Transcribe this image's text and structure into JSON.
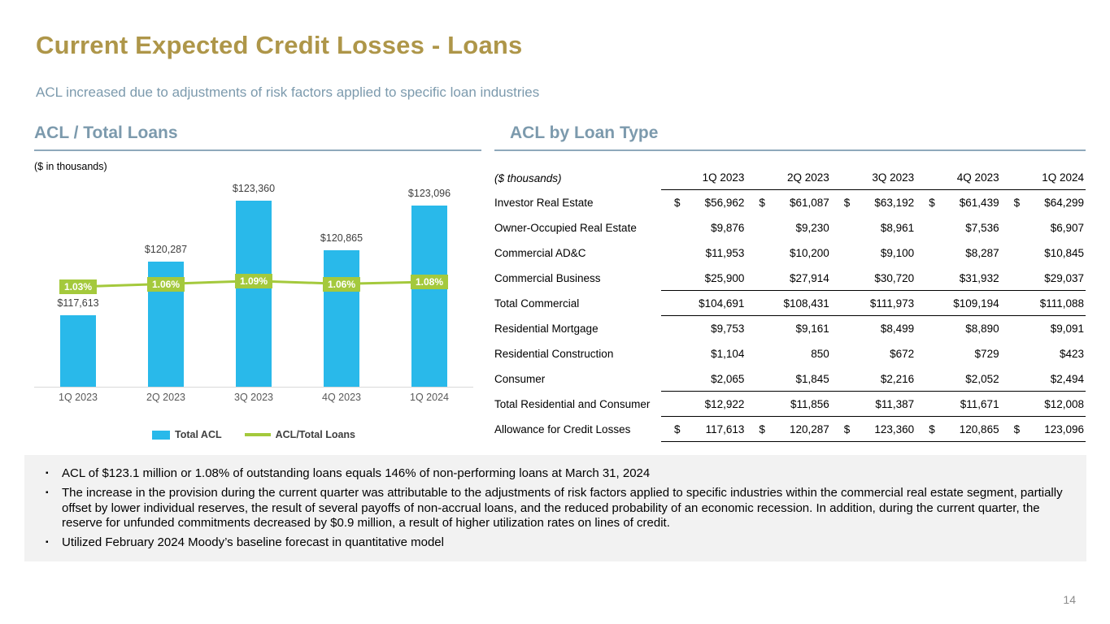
{
  "slide": {
    "title": "Current Expected Credit Losses - Loans",
    "subtitle": "ACL increased due to adjustments of risk factors applied to specific loan industries",
    "page_number": "14"
  },
  "colors": {
    "title_gold": "#AE9649",
    "heading_blue": "#7C9AAD",
    "bar_blue": "#29B9EA",
    "line_green": "#A4C93C",
    "notes_bg": "#F2F2F2"
  },
  "chart_section": {
    "heading": "ACL / Total Loans",
    "units_note": "($ in thousands)",
    "legend": [
      {
        "label": "Total ACL",
        "swatch": "bar"
      },
      {
        "label": "ACL/Total Loans",
        "swatch": "line"
      }
    ]
  },
  "chart_data": {
    "type": "bar+line",
    "title": "ACL / Total Loans",
    "categories": [
      "1Q 2023",
      "2Q 2023",
      "3Q 2023",
      "4Q 2023",
      "1Q 2024"
    ],
    "series": [
      {
        "name": "Total ACL",
        "type": "bar",
        "values": [
          117613,
          120287,
          123360,
          120865,
          123096
        ],
        "labels": [
          "$117,613",
          "$120,287",
          "$123,360",
          "$120,865",
          "$123,096"
        ]
      },
      {
        "name": "ACL/Total Loans",
        "type": "line",
        "values": [
          1.03,
          1.06,
          1.09,
          1.06,
          1.08
        ],
        "labels": [
          "1.03%",
          "1.06%",
          "1.09%",
          "1.06%",
          "1.08%"
        ]
      }
    ],
    "bar_axis": {
      "min": 114000,
      "max": 123800
    },
    "pct_axis": {
      "min": 0,
      "max": 2
    },
    "grid": "off",
    "legend_position": "bottom"
  },
  "table_section": {
    "heading": "ACL by Loan Type",
    "units_header": "($ thousands)",
    "columns": [
      "1Q 2023",
      "2Q 2023",
      "3Q 2023",
      "4Q 2023",
      "1Q 2024"
    ],
    "rows": [
      {
        "label": "Investor Real Estate",
        "dollar": true,
        "rule_below": false,
        "values": [
          "$56,962",
          "$61,087",
          "$63,192",
          "$61,439",
          "$64,299"
        ]
      },
      {
        "label": "Owner-Occupied Real Estate",
        "dollar": false,
        "rule_below": false,
        "values": [
          "$9,876",
          "$9,230",
          "$8,961",
          "$7,536",
          "$6,907"
        ]
      },
      {
        "label": "Commercial AD&C",
        "dollar": false,
        "rule_below": false,
        "values": [
          "$11,953",
          "$10,200",
          "$9,100",
          "$8,287",
          "$10,845"
        ]
      },
      {
        "label": "Commercial Business",
        "dollar": false,
        "rule_below": true,
        "values": [
          "$25,900",
          "$27,914",
          "$30,720",
          "$31,932",
          "$29,037"
        ]
      },
      {
        "label": "Total Commercial",
        "dollar": false,
        "rule_below": true,
        "values": [
          "$104,691",
          "$108,431",
          "$111,973",
          "$109,194",
          "$111,088"
        ]
      },
      {
        "label": "Residential Mortgage",
        "dollar": false,
        "rule_below": false,
        "values": [
          "$9,753",
          "$9,161",
          "$8,499",
          "$8,890",
          "$9,091"
        ]
      },
      {
        "label": "Residential Construction",
        "dollar": false,
        "rule_below": false,
        "values": [
          "$1,104",
          "850",
          "$672",
          "$729",
          "$423"
        ]
      },
      {
        "label": "Consumer",
        "dollar": false,
        "rule_below": true,
        "values": [
          "$2,065",
          "$1,845",
          "$2,216",
          "$2,052",
          "$2,494"
        ]
      },
      {
        "label": "Total Residential and Consumer",
        "dollar": false,
        "rule_below": true,
        "values": [
          "$12,922",
          "$11,856",
          "$11,387",
          "$11,671",
          "$12,008"
        ]
      },
      {
        "label": "Allowance for Credit Losses",
        "dollar": true,
        "rule_below": true,
        "values": [
          "117,613",
          "120,287",
          "123,360",
          "120,865",
          "123,096"
        ]
      }
    ]
  },
  "notes": {
    "bullets": [
      "ACL of $123.1 million or 1.08% of outstanding loans equals 146% of non-performing loans at March 31, 2024",
      "The increase in the provision during the current quarter was attributable to the adjustments of risk factors applied to specific industries within the commercial real estate segment, partially offset by lower individual reserves, the result of several payoffs of non-accrual loans, and the reduced probability of an economic recession.  In addition, during the current quarter, the reserve for unfunded commitments decreased by $0.9 million, a result of higher utilization rates on lines of credit.",
      "Utilized February 2024 Moody’s baseline forecast in quantitative model"
    ]
  }
}
